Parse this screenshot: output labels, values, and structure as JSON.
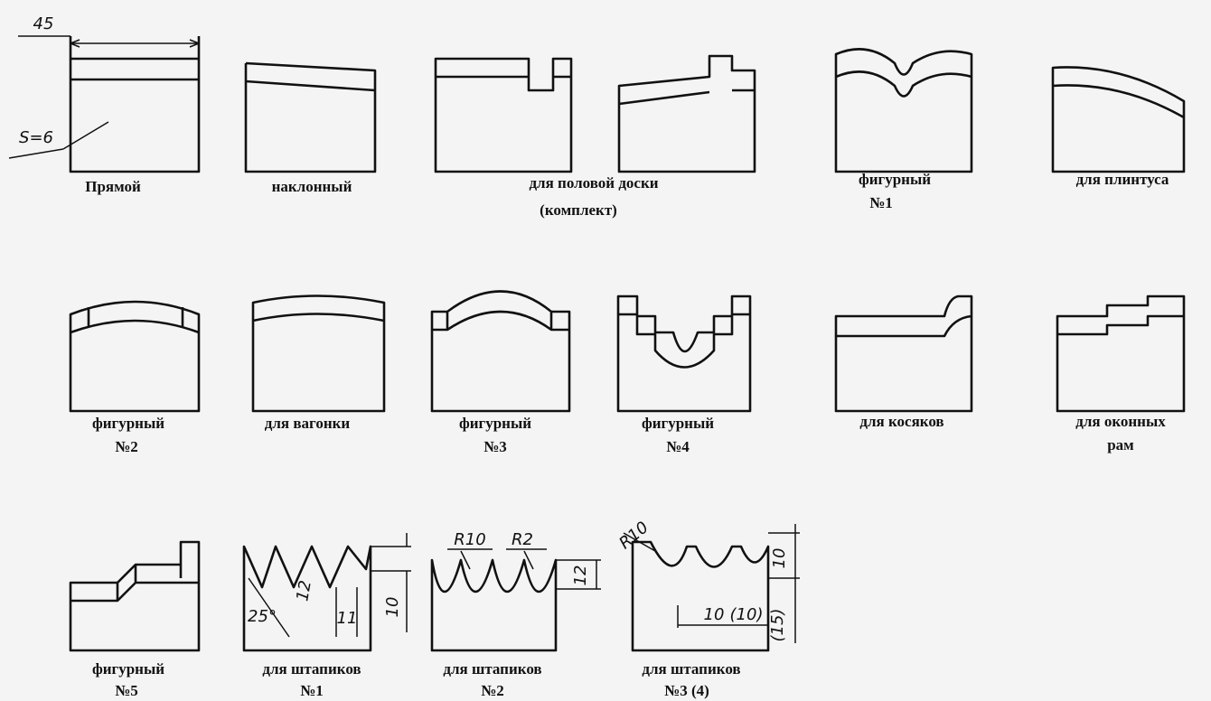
{
  "figures": [
    {
      "lines": [
        "Прямой"
      ],
      "dims": [
        "45",
        "S=6"
      ]
    },
    {
      "lines": [
        "наклонный"
      ]
    },
    {
      "lines": [
        "для половой доски",
        "(комплект)"
      ]
    },
    {
      "lines": [
        "фигурный",
        "№1"
      ]
    },
    {
      "lines": [
        "для плинтуса"
      ]
    },
    {
      "lines": [
        "фигурный",
        "№2"
      ]
    },
    {
      "lines": [
        "для вагонки"
      ]
    },
    {
      "lines": [
        "фигурный",
        "№3"
      ]
    },
    {
      "lines": [
        "фигурный",
        "№4"
      ]
    },
    {
      "lines": [
        "для косяков"
      ]
    },
    {
      "lines": [
        "для оконных",
        "рам"
      ]
    },
    {
      "lines": [
        "фигурный",
        "№5"
      ]
    },
    {
      "lines": [
        "для штапиков",
        "№1"
      ],
      "dims": [
        "25°",
        "12",
        "11",
        "10"
      ]
    },
    {
      "lines": [
        "для штапиков",
        "№2"
      ],
      "dims": [
        "R10",
        "R2",
        "12"
      ]
    },
    {
      "lines": [
        "для штапиков",
        "№3 (4)"
      ],
      "dims": [
        "R10",
        "10",
        "10",
        "(10)",
        "(15)"
      ]
    }
  ]
}
